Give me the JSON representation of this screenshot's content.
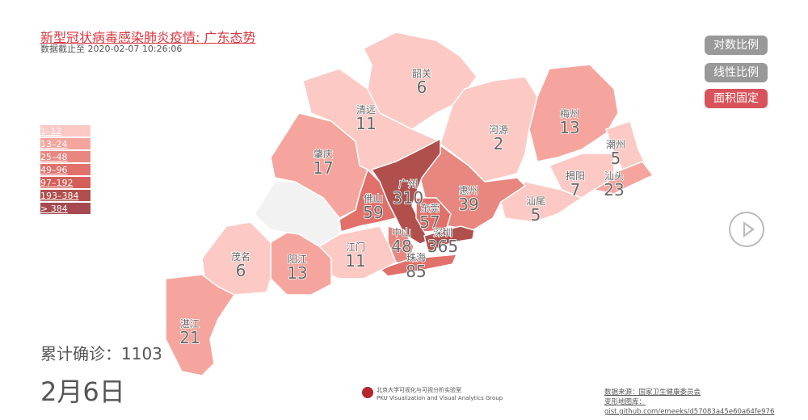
{
  "title": "新型冠状病毒感染肺炎疫情: 广东态势",
  "subtitle": "数据截止至 2020-02-07 10:26:06",
  "legend": [
    {
      "label": "1–12",
      "color": "#fcc9c4"
    },
    {
      "label": "13–24",
      "color": "#f5a59d"
    },
    {
      "label": "25–48",
      "color": "#e8877f"
    },
    {
      "label": "49–96",
      "color": "#e2706a"
    },
    {
      "label": "97–192",
      "color": "#d65e58"
    },
    {
      "label": "193–384",
      "color": "#b04f4b"
    },
    {
      "label": "> 384",
      "color": "#a54a50"
    }
  ],
  "no_data_color": "#f2f2f2",
  "buttons": {
    "log": "对数比例",
    "linear": "线性比例",
    "area": "面积固定"
  },
  "active_button_color": "#d9535a",
  "play_icon": "play-icon",
  "total": "累计确诊：1103",
  "date": "2月6日",
  "lab": {
    "cn": "北京大学可视化与可视分析实验室",
    "en": "PKU Visualization and Visual Analytics Group"
  },
  "source": {
    "line1": "数据来源：国家卫生健康委员会",
    "line2": "变形地图库：gist.github.com/emeeks/d57083a45e60a64fe976"
  },
  "cities": [
    {
      "name": "韶关",
      "value": 6
    },
    {
      "name": "清远",
      "value": 11
    },
    {
      "name": "河源",
      "value": 2
    },
    {
      "name": "梅州",
      "value": 13
    },
    {
      "name": "潮州",
      "value": 5
    },
    {
      "name": "汕头",
      "value": 23
    },
    {
      "name": "揭阳",
      "value": 7
    },
    {
      "name": "汕尾",
      "value": 5
    },
    {
      "name": "惠州",
      "value": 39
    },
    {
      "name": "广州",
      "value": 310
    },
    {
      "name": "东莞",
      "value": 57
    },
    {
      "name": "深圳",
      "value": 365
    },
    {
      "name": "佛山",
      "value": 59
    },
    {
      "name": "中山",
      "value": 48
    },
    {
      "name": "珠海",
      "value": 85
    },
    {
      "name": "江门",
      "value": 11
    },
    {
      "name": "阳江",
      "value": 13
    },
    {
      "name": "茂名",
      "value": 6
    },
    {
      "name": "湛江",
      "value": 21
    },
    {
      "name": "肇庆",
      "value": 17
    },
    {
      "name": "云浮",
      "value": null
    }
  ]
}
